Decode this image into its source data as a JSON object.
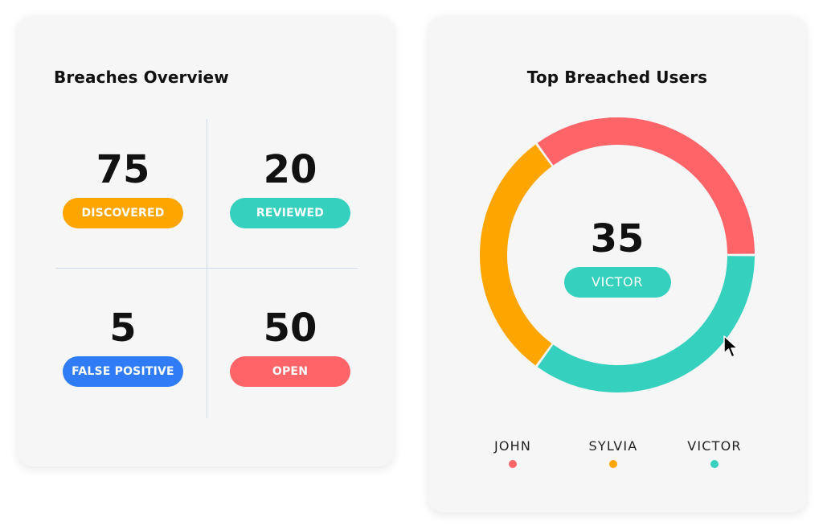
{
  "colors": {
    "orange": "#ffa500",
    "teal": "#36d0be",
    "blue": "#2f7cf6",
    "red": "#ff6468",
    "card_bg": "#f6f6f7"
  },
  "breaches_overview": {
    "title": "Breaches Overview",
    "stats": [
      {
        "value": "75",
        "label": "DISCOVERED",
        "color": "#ffa500"
      },
      {
        "value": "20",
        "label": "REVIEWED",
        "color": "#36d0be"
      },
      {
        "value": "5",
        "label": "FALSE POSITIVE",
        "color": "#2f7cf6"
      },
      {
        "value": "50",
        "label": "OPEN",
        "color": "#ff6468"
      }
    ]
  },
  "top_breached_users": {
    "title": "Top Breached Users",
    "center": {
      "value": "35",
      "label": "VICTOR",
      "color": "#36d0be"
    },
    "legend": [
      {
        "label": "JOHN",
        "color": "#ff6468"
      },
      {
        "label": "SYLVIA",
        "color": "#ffa500"
      },
      {
        "label": "VICTOR",
        "color": "#36d0be"
      }
    ]
  },
  "chart_data": {
    "type": "pie",
    "title": "Top Breached Users",
    "categories": [
      "JOHN",
      "SYLVIA",
      "VICTOR"
    ],
    "values": [
      35,
      30,
      35
    ],
    "colors": [
      "#ff6468",
      "#ffa500",
      "#36d0be"
    ],
    "legend": "bottom"
  },
  "cursor": {
    "icon": "pointer-cursor-icon"
  }
}
